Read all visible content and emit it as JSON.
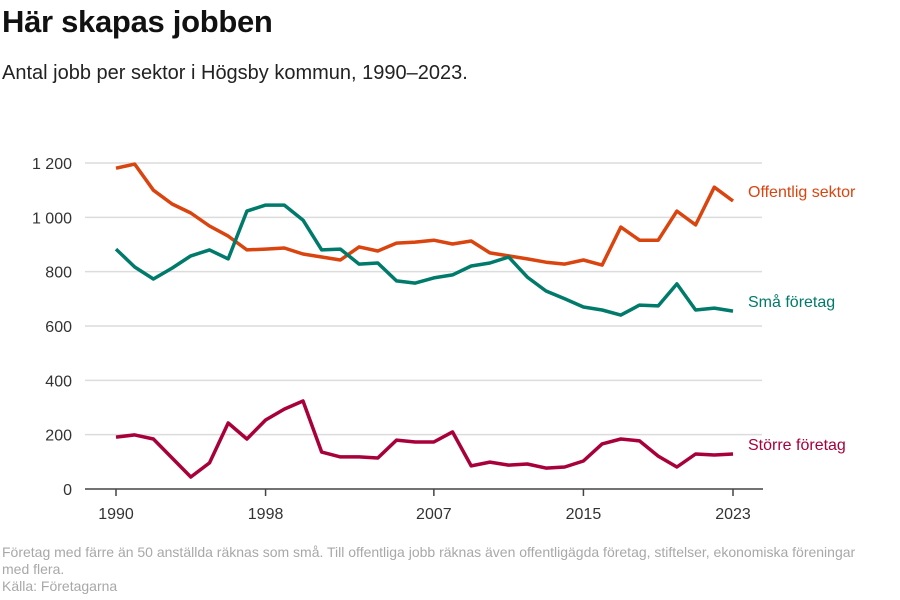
{
  "header": {
    "title": "Här skapas jobben",
    "subtitle": "Antal jobb per sektor i Högsby kommun, 1990–2023."
  },
  "footer": {
    "note": "Företag med färre än 50 anställda räknas som små. Till offentliga jobb räknas även offentligägda företag, stiftelser, ekonomiska föreningar med flera.",
    "source": "Källa: Företagarna"
  },
  "chart_data": {
    "type": "line",
    "title": "Här skapas jobben",
    "subtitle": "Antal jobb per sektor i Högsby kommun, 1990–2023.",
    "xlabel": "",
    "ylabel": "",
    "xlim": [
      1990,
      2023
    ],
    "ylim": [
      0,
      1200
    ],
    "yticks": [
      0,
      200,
      400,
      600,
      800,
      1000,
      1200
    ],
    "ytick_labels": [
      "0",
      "200",
      "400",
      "600",
      "800",
      "1 000",
      "1 200"
    ],
    "xticks": [
      1990,
      1998,
      2007,
      2015,
      2023
    ],
    "xtick_labels": [
      "1990",
      "1998",
      "2007",
      "2015",
      "2023"
    ],
    "grid": true,
    "legend": "direct labels at line ends (right)",
    "x": [
      1990,
      1991,
      1992,
      1993,
      1994,
      1995,
      1996,
      1997,
      1998,
      1999,
      2000,
      2001,
      2002,
      2003,
      2004,
      2005,
      2006,
      2007,
      2008,
      2009,
      2010,
      2011,
      2012,
      2013,
      2014,
      2015,
      2016,
      2017,
      2018,
      2019,
      2020,
      2021,
      2022,
      2023
    ],
    "series": [
      {
        "name": "Offentlig sektor",
        "color": "#d9440f",
        "values": [
          1181,
          1196,
          1100,
          1049,
          1016,
          968,
          931,
          880,
          883,
          887,
          865,
          854,
          843,
          891,
          876,
          905,
          909,
          916,
          902,
          913,
          869,
          858,
          847,
          835,
          828,
          843,
          824,
          964,
          916,
          916,
          1023,
          972,
          1111,
          1060
        ]
      },
      {
        "name": "Små företag",
        "color": "#007a6a",
        "values": [
          883,
          817,
          773,
          813,
          858,
          880,
          847,
          1023,
          1045,
          1045,
          990,
          880,
          883,
          828,
          832,
          766,
          758,
          777,
          788,
          821,
          832,
          854,
          780,
          729,
          700,
          670,
          659,
          640,
          677,
          674,
          755,
          659,
          666,
          655
        ]
      },
      {
        "name": "Större företag",
        "color": "#a8003a",
        "values": [
          191,
          199,
          184,
          114,
          44,
          96,
          243,
          184,
          254,
          294,
          324,
          136,
          118,
          118,
          114,
          180,
          173,
          173,
          210,
          85,
          99,
          88,
          92,
          77,
          81,
          103,
          166,
          184,
          177,
          121,
          81,
          129,
          125,
          129
        ]
      }
    ]
  }
}
